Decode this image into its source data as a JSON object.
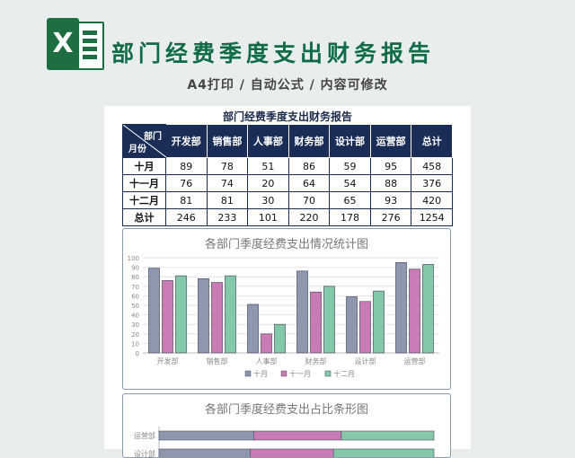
{
  "banner": {
    "icon_letter": "X",
    "title": "部门经费季度支出财务报告",
    "subtitle": "A4打印 / 自动公式 / 内容可修改"
  },
  "sheet": {
    "title": "部门经费季度支出财务报告",
    "corner_top": "部门",
    "corner_bottom": "月份",
    "headers": [
      "开发部",
      "销售部",
      "人事部",
      "财务部",
      "设计部",
      "运营部",
      "总计"
    ],
    "rows": [
      {
        "label": "十月",
        "cells": [
          "89",
          "78",
          "51",
          "86",
          "59",
          "95",
          "458"
        ]
      },
      {
        "label": "十一月",
        "cells": [
          "76",
          "74",
          "20",
          "64",
          "54",
          "88",
          "376"
        ]
      },
      {
        "label": "十二月",
        "cells": [
          "81",
          "81",
          "30",
          "70",
          "65",
          "93",
          "420"
        ]
      },
      {
        "label": "总计",
        "cells": [
          "246",
          "233",
          "101",
          "220",
          "178",
          "276",
          "1254"
        ]
      }
    ]
  },
  "colors": {
    "navy": "#1a2d57",
    "oct": "#8e97ad",
    "nov": "#c97bb6",
    "dec": "#83c8a8"
  },
  "chart_data": [
    {
      "type": "bar",
      "title": "各部门季度经费支出情况统计图",
      "categories": [
        "开发部",
        "销售部",
        "人事部",
        "财务部",
        "设计部",
        "运营部"
      ],
      "series": [
        {
          "name": "十月",
          "values": [
            89,
            78,
            51,
            86,
            59,
            95
          ]
        },
        {
          "name": "十一月",
          "values": [
            76,
            74,
            20,
            64,
            54,
            88
          ]
        },
        {
          "name": "十二月",
          "values": [
            81,
            81,
            30,
            70,
            65,
            93
          ]
        }
      ],
      "ylim": [
        0,
        100
      ],
      "yticks": [
        0,
        10,
        20,
        30,
        40,
        50,
        60,
        70,
        80,
        90,
        100
      ],
      "grid": true,
      "legend": "bottom"
    },
    {
      "type": "bar",
      "orientation": "horizontal-stacked-percent",
      "title": "各部门季度经费支出占比条形图",
      "categories": [
        "运营部",
        "设计部"
      ],
      "series": [
        {
          "name": "十月",
          "values": [
            95,
            59
          ]
        },
        {
          "name": "十一月",
          "values": [
            88,
            54
          ]
        },
        {
          "name": "十二月",
          "values": [
            93,
            65
          ]
        }
      ]
    }
  ]
}
